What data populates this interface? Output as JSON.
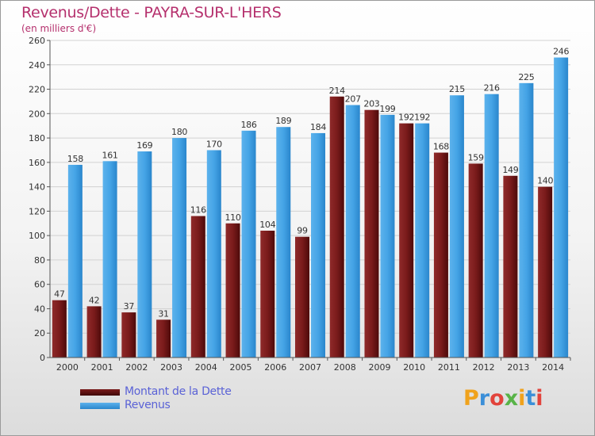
{
  "chart_data": {
    "type": "bar",
    "title": "Revenus/Dette - PAYRA-SUR-L'HERS",
    "subtitle": "(en milliers d'€)",
    "categories": [
      "2000",
      "2001",
      "2002",
      "2003",
      "2004",
      "2005",
      "2006",
      "2007",
      "2008",
      "2009",
      "2010",
      "2011",
      "2012",
      "2013",
      "2014"
    ],
    "series": [
      {
        "name": "Montant de la Dette",
        "color": "#7a1b1b",
        "values": [
          47,
          42,
          37,
          31,
          116,
          110,
          104,
          99,
          214,
          203,
          192,
          168,
          159,
          149,
          140
        ]
      },
      {
        "name": "Revenus",
        "color": "#3b9be0",
        "values": [
          158,
          161,
          169,
          180,
          170,
          186,
          189,
          184,
          207,
          199,
          192,
          215,
          216,
          225,
          246
        ]
      }
    ],
    "ylim": [
      0,
      260
    ],
    "yticks": [
      0,
      20,
      40,
      60,
      80,
      100,
      120,
      140,
      160,
      180,
      200,
      220,
      240,
      260
    ],
    "grid": true,
    "legend_position": "bottom-left"
  },
  "logo_text": "Proxiti"
}
